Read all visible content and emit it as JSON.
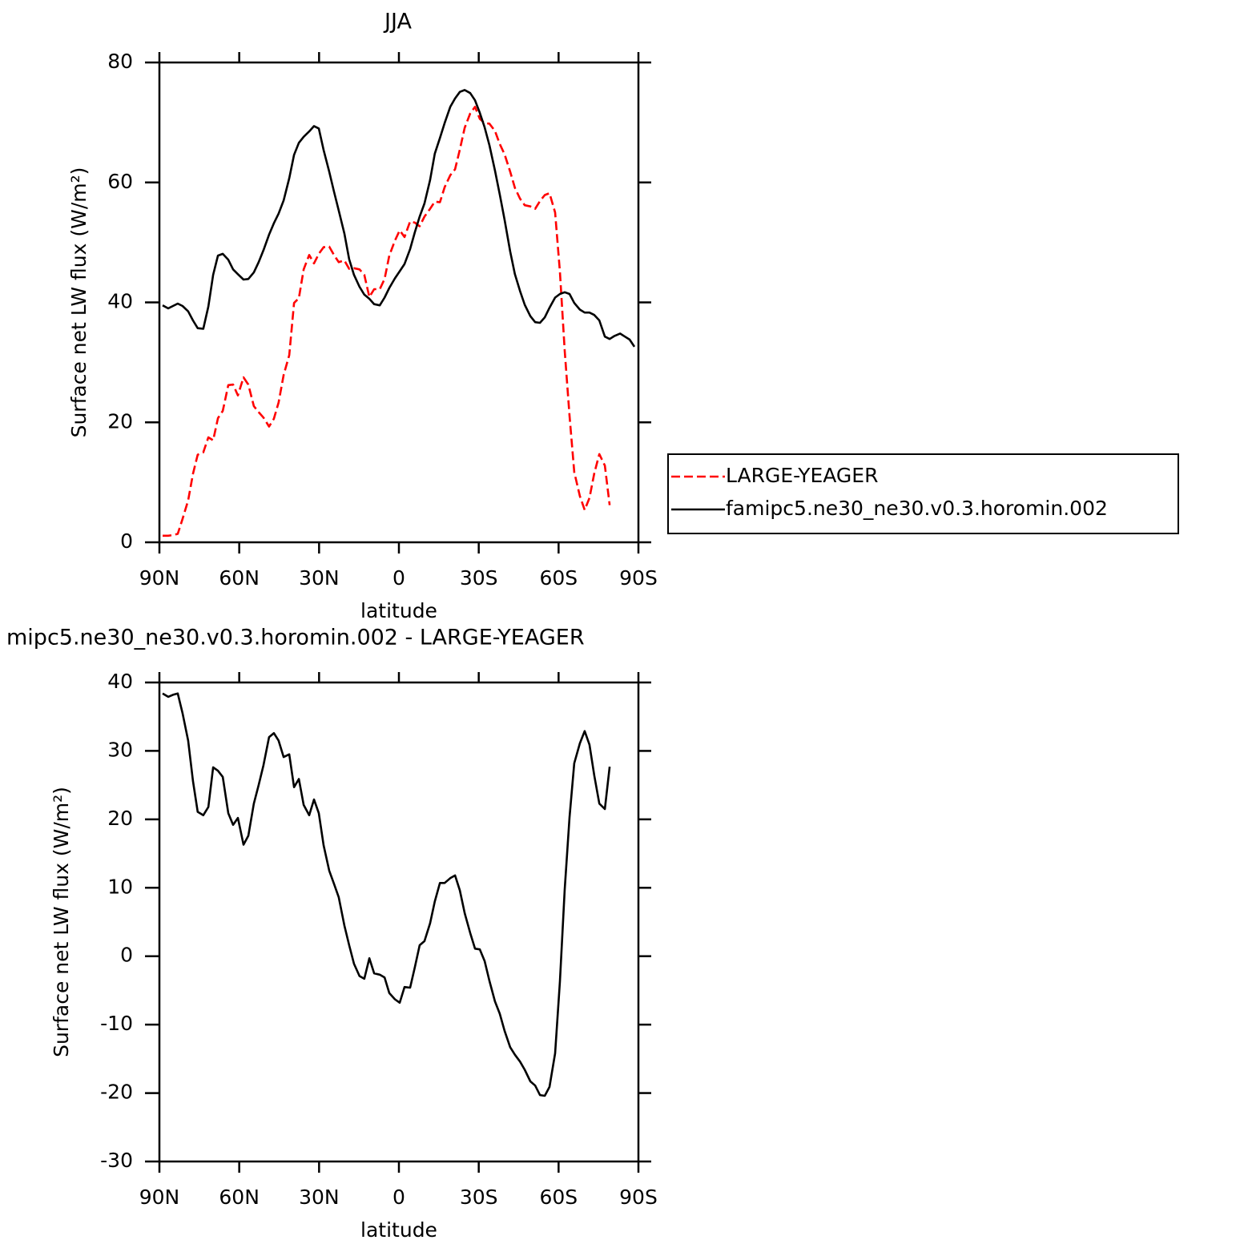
{
  "chart_data": [
    {
      "type": "line",
      "title": "JJA",
      "x_label": "latitude",
      "y_label": "Surface net LW flux (W/m²)",
      "x": [
        88.8,
        86.7,
        84.9,
        83.1,
        81.3,
        79.2,
        77.4,
        75.6,
        73.5,
        71.6,
        69.8,
        68.0,
        66.2,
        64.1,
        62.3,
        60.5,
        58.4,
        56.6,
        54.5,
        52.7,
        50.9,
        48.8,
        47.0,
        45.2,
        43.3,
        41.2,
        39.4,
        37.6,
        35.8,
        33.7,
        31.9,
        30.1,
        28.3,
        26.2,
        24.4,
        22.6,
        20.5,
        18.7,
        16.9,
        14.8,
        13.0,
        11.1,
        9.3,
        7.2,
        5.4,
        3.6,
        1.5,
        -0.3,
        -2.1,
        -4.2,
        -6.0,
        -7.8,
        -9.6,
        -11.7,
        -13.5,
        -15.4,
        -17.2,
        -19.3,
        -21.1,
        -22.9,
        -24.7,
        -26.8,
        -28.6,
        -30.4,
        -32.2,
        -34.0,
        -36.1,
        -37.9,
        -39.7,
        -41.8,
        -43.6,
        -45.5,
        -47.3,
        -49.4,
        -51.2,
        -53.0,
        -54.8,
        -56.6,
        -58.7,
        -60.5,
        -62.3,
        -64.1,
        -65.9,
        -68.0,
        -69.8,
        -71.6,
        -73.4,
        -75.3,
        -77.4,
        -79.2,
        -81.0,
        -83.1,
        -84.9,
        -86.7,
        -88.5
      ],
      "series": [
        {
          "name": "LARGE-YEAGER",
          "color": "#ff0000",
          "line_style": "dashed",
          "values": [
            1.1,
            1.1,
            1.2,
            1.4,
            3.9,
            7.0,
            11.4,
            14.6,
            15.0,
            17.5,
            17.0,
            20.7,
            21.9,
            26.2,
            26.3,
            24.5,
            27.5,
            26.3,
            22.7,
            21.7,
            20.8,
            19.3,
            20.6,
            23.3,
            27.9,
            31.2,
            39.9,
            40.7,
            45.5,
            47.9,
            46.5,
            48.1,
            49.2,
            49.3,
            47.9,
            46.7,
            47.0,
            45.6,
            45.7,
            45.5,
            44.6,
            40.9,
            42.2,
            42.2,
            43.9,
            47.8,
            50.3,
            52.0,
            50.9,
            53.5,
            53.3,
            52.7,
            54.3,
            55.6,
            56.8,
            56.7,
            59.2,
            61.2,
            62.2,
            65.5,
            69.1,
            71.5,
            72.6,
            70.6,
            69.9,
            69.8,
            68.6,
            66.4,
            64.7,
            61.8,
            59.1,
            57.3,
            56.2,
            56.0,
            55.6,
            56.9,
            57.9,
            58.2,
            55.0,
            45.1,
            31.9,
            21.1,
            11.7,
            7.7,
            5.4,
            7.4,
            11.5,
            14.7,
            12.8,
            6.2,
            null,
            null,
            null,
            null,
            null
          ]
        },
        {
          "name": "famipc5.ne30_ne30.v0.3.horomin.002",
          "color": "#000000",
          "line_style": "solid",
          "values": [
            39.5,
            39.0,
            39.4,
            39.8,
            39.4,
            38.5,
            37.0,
            35.7,
            35.6,
            39.3,
            44.6,
            47.8,
            48.1,
            47.1,
            45.5,
            44.7,
            43.8,
            43.9,
            45.0,
            46.7,
            48.7,
            51.3,
            53.2,
            54.8,
            57.0,
            60.7,
            64.6,
            66.6,
            67.6,
            68.5,
            69.4,
            69.0,
            65.4,
            61.8,
            58.5,
            55.3,
            51.5,
            47.2,
            44.6,
            42.6,
            41.3,
            40.6,
            39.7,
            39.5,
            40.8,
            42.4,
            44.0,
            45.2,
            46.4,
            48.9,
            51.7,
            54.3,
            56.5,
            60.4,
            64.8,
            67.4,
            69.9,
            72.6,
            74.0,
            75.1,
            75.4,
            74.9,
            73.7,
            71.6,
            69.2,
            66.2,
            62.0,
            58.0,
            53.8,
            48.5,
            44.7,
            41.9,
            39.6,
            37.7,
            36.7,
            36.6,
            37.5,
            39.1,
            40.8,
            41.4,
            41.7,
            41.4,
            39.9,
            38.8,
            38.3,
            38.3,
            37.9,
            37.0,
            34.3,
            33.9,
            34.4,
            34.8,
            34.3,
            33.8,
            32.6
          ]
        }
      ],
      "xlim": [
        90,
        -90
      ],
      "xticks": [
        {
          "value": 90,
          "label": "90N"
        },
        {
          "value": 60,
          "label": "60N"
        },
        {
          "value": 30,
          "label": "30N"
        },
        0,
        {
          "value": -30,
          "label": "30S"
        },
        {
          "value": -60,
          "label": "60S"
        },
        {
          "value": -90,
          "label": "90S"
        }
      ],
      "ylim": [
        0,
        80
      ],
      "yticks": [
        0,
        20,
        40,
        60,
        80
      ],
      "legend": "right"
    },
    {
      "type": "line",
      "title": "mipc5.ne30_ne30.v0.3.horomin.002 - LARGE-YEAGER",
      "x_label": "latitude",
      "y_label": "Surface net LW flux (W/m²)",
      "x": [
        88.8,
        86.7,
        84.9,
        83.1,
        81.3,
        79.2,
        77.4,
        75.6,
        73.5,
        71.6,
        69.8,
        68.0,
        66.2,
        64.1,
        62.3,
        60.5,
        58.4,
        56.6,
        54.5,
        52.7,
        50.9,
        48.8,
        47.0,
        45.2,
        43.3,
        41.2,
        39.4,
        37.6,
        35.8,
        33.7,
        31.9,
        30.1,
        28.3,
        26.2,
        24.4,
        22.6,
        20.5,
        18.7,
        16.9,
        14.8,
        13.0,
        11.1,
        9.3,
        7.2,
        5.4,
        3.6,
        1.5,
        -0.3,
        -2.1,
        -4.2,
        -6.0,
        -7.8,
        -9.6,
        -11.7,
        -13.5,
        -15.4,
        -17.2,
        -19.3,
        -21.1,
        -22.9,
        -24.7,
        -26.8,
        -28.6,
        -30.4,
        -32.2,
        -34.0,
        -36.1,
        -37.9,
        -39.7,
        -41.8,
        -43.6,
        -45.5,
        -47.3,
        -49.4,
        -51.2,
        -53.0,
        -54.8,
        -56.6,
        -58.7,
        -60.5,
        -62.3,
        -64.1,
        -65.9,
        -68.0,
        -69.8,
        -71.6,
        -73.4,
        -75.3,
        -77.4,
        -79.2
      ],
      "series": [
        {
          "color": "#000000",
          "line_style": "solid",
          "values": [
            38.4,
            37.9,
            38.2,
            38.4,
            35.5,
            31.5,
            25.6,
            21.1,
            20.6,
            21.8,
            27.6,
            27.1,
            26.2,
            20.9,
            19.2,
            20.2,
            16.3,
            17.6,
            22.3,
            25.0,
            27.9,
            32.0,
            32.6,
            31.5,
            29.1,
            29.5,
            24.7,
            25.9,
            22.1,
            20.6,
            22.9,
            20.9,
            16.2,
            12.5,
            10.6,
            8.6,
            4.5,
            1.6,
            -1.1,
            -2.9,
            -3.3,
            -0.3,
            -2.5,
            -2.7,
            -3.1,
            -5.4,
            -6.3,
            -6.8,
            -4.5,
            -4.6,
            -1.6,
            1.6,
            2.2,
            4.8,
            8.0,
            10.7,
            10.7,
            11.4,
            11.8,
            9.6,
            6.3,
            3.4,
            1.1,
            1.0,
            -0.7,
            -3.6,
            -6.6,
            -8.4,
            -10.9,
            -13.3,
            -14.4,
            -15.4,
            -16.6,
            -18.3,
            -18.9,
            -20.3,
            -20.4,
            -19.1,
            -14.2,
            -3.7,
            9.8,
            20.3,
            28.2,
            31.1,
            32.9,
            30.9,
            26.4,
            22.3,
            21.5,
            27.7
          ]
        }
      ],
      "xlim": [
        90,
        -90
      ],
      "xticks": [
        {
          "value": 90,
          "label": "90N"
        },
        {
          "value": 60,
          "label": "60N"
        },
        {
          "value": 30,
          "label": "30N"
        },
        0,
        {
          "value": -30,
          "label": "30S"
        },
        {
          "value": -60,
          "label": "60S"
        },
        {
          "value": -90,
          "label": "90S"
        }
      ],
      "ylim": [
        -30,
        40
      ],
      "yticks": [
        -30,
        -20,
        -10,
        0,
        10,
        20,
        30,
        40
      ]
    }
  ]
}
